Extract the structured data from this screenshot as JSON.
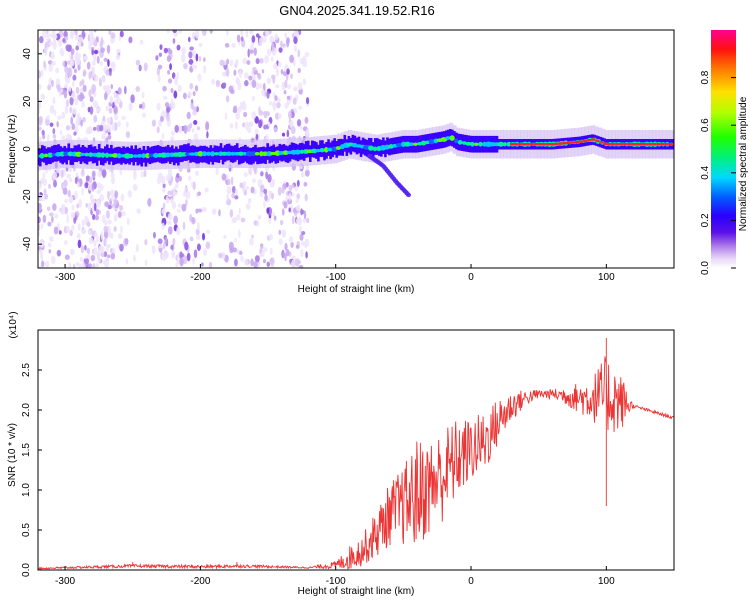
{
  "title": "GN04.2025.341.19.52.R16",
  "chart_data": [
    {
      "type": "heatmap",
      "title": "GN04.2025.341.19.52.R16",
      "xlabel": "Height of straight line (km)",
      "ylabel": "Frequency (Hz)",
      "xlim": [
        -320,
        150
      ],
      "ylim": [
        -50,
        50
      ],
      "xticks": [
        -300,
        -200,
        -100,
        0,
        100
      ],
      "yticks": [
        -40,
        -20,
        0,
        20,
        40
      ],
      "colorbar": {
        "label": "Normalized spectral amplitude",
        "range": [
          0,
          1
        ],
        "ticks": [
          "0.0",
          "0.2",
          "0.4",
          "0.6",
          "0.8"
        ],
        "colors": [
          "#ffffff",
          "#e8d8f8",
          "#c9a8ef",
          "#9a5fe0",
          "#6a1ee0",
          "#3a00ff",
          "#0040ff",
          "#00c8ff",
          "#00f0a0",
          "#40ff00",
          "#c8ff00",
          "#ffe000",
          "#ff8000",
          "#ff2000",
          "#ff0080"
        ]
      },
      "ridge": {
        "x": [
          -320,
          -300,
          -250,
          -200,
          -150,
          -120,
          -100,
          -90,
          -80,
          -70,
          -60,
          -50,
          -40,
          -30,
          -20,
          -15,
          -10,
          0,
          10,
          20,
          40,
          60,
          80,
          90,
          100,
          120,
          150
        ],
        "freq": [
          -3,
          -2,
          -3,
          -2,
          -2,
          -1,
          0,
          2,
          1,
          0,
          1,
          2,
          2,
          3,
          4,
          5,
          3,
          2,
          2,
          2,
          2,
          2,
          3,
          4,
          2,
          2,
          2
        ]
      },
      "branch": {
        "x": [
          -75,
          -65,
          -55,
          -45
        ],
        "freq": [
          -3,
          -7,
          -14,
          -20
        ]
      }
    },
    {
      "type": "line",
      "title": "",
      "xlabel": "Height of straight line (km)",
      "ylabel": "SNR (10 * v/v)",
      "multiplier": "(x10⁴)",
      "xlim": [
        -320,
        150
      ],
      "ylim": [
        0,
        3
      ],
      "xticks": [
        -300,
        -200,
        -100,
        0,
        100
      ],
      "yticks": [
        "0.0",
        "0.5",
        "1.0",
        "1.5",
        "2.0",
        "2.5"
      ],
      "color": "#ee3333",
      "envelope": {
        "x": [
          -320,
          -250,
          -200,
          -170,
          -120,
          -100,
          -90,
          -80,
          -70,
          -60,
          -50,
          -40,
          -30,
          -20,
          -10,
          0,
          10,
          20,
          30,
          40,
          50,
          60,
          70,
          80,
          90,
          100,
          110,
          120,
          130,
          140,
          150
        ],
        "mean": [
          0.02,
          0.05,
          0.04,
          0.05,
          0.03,
          0.06,
          0.15,
          0.25,
          0.45,
          0.7,
          0.8,
          0.95,
          1.05,
          1.2,
          1.4,
          1.5,
          1.6,
          1.85,
          2.05,
          2.15,
          2.2,
          2.2,
          2.18,
          2.15,
          2.15,
          2.2,
          2.1,
          2.05,
          2.0,
          1.95,
          1.9
        ],
        "amp": [
          0.01,
          0.02,
          0.02,
          0.02,
          0.01,
          0.05,
          0.15,
          0.2,
          0.3,
          0.4,
          0.5,
          0.7,
          0.6,
          0.6,
          0.5,
          0.4,
          0.4,
          0.3,
          0.2,
          0.1,
          0.06,
          0.06,
          0.12,
          0.2,
          0.3,
          0.5,
          0.4,
          0.02,
          0.02,
          0.02,
          0.02
        ]
      },
      "peaks": [
        {
          "x": -250,
          "y": 0.1
        },
        {
          "x": -173,
          "y": 0.1
        },
        {
          "x": 100,
          "y": 2.9
        },
        {
          "x": 100,
          "y": 0.8
        }
      ]
    }
  ]
}
